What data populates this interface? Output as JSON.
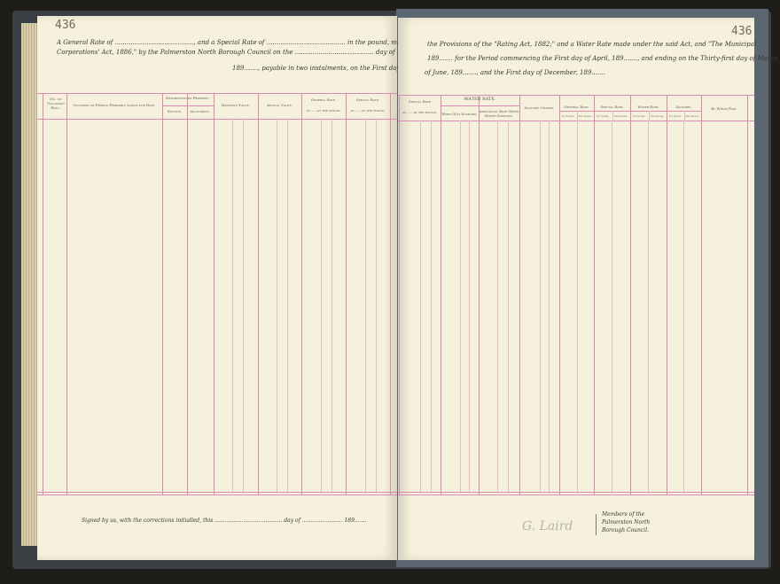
{
  "page_number_left": "436",
  "page_number_right": "436",
  "preamble_left": [
    "A General Rate of ........................................, and a Special Rate of ........................................ in the pound, made under",
    "Corporations' Act, 1886,\" by the Palmerston North Borough Council on the ........................................ day of ........................",
    "189......., payable in two instalments, on the First day"
  ],
  "preamble_right": [
    "the Provisions of the \"Rating Act, 1882;\" and a Water Rate made under the said Act, and \"The Municipal",
    "189....... for the Period commencing the First day of April, 189......., and ending on the Thirty-first day of March,",
    "of June, 189......., and the First day of December, 189......."
  ],
  "headers_left": {
    "no_on_roll": "No. on Valuation Roll.",
    "occupier": "Occupier or Person Primarily Liable for Rate.",
    "description": "Description of Property.",
    "section": "Section.",
    "allotment": "Allotment.",
    "rateable_value": "Rateable Value.",
    "annual_value": "Annual Value.",
    "general_rate": "General Rate.",
    "general_rate_sub": "at.......in the pound.",
    "special_rate": "Special Rate.",
    "special_rate_sub": "at.......in the pound."
  },
  "headers_right": {
    "special_rate": "Special Rate",
    "special_rate_sub": "at.......in the pound.",
    "water_rate": "WATER RATE.",
    "not_supplied": "When Not Supplied.",
    "additional": "Additional Rate When Water Supplied.",
    "sanitary": "Sanitary Charge.",
    "general_rate": "General Rate.",
    "special_rate2": "Special Rate.",
    "water_rate2": "Water Rate.",
    "sanitary2": "Sanitary.",
    "first_instal": "1st Instal.",
    "second_instal": "2nd Instal.",
    "by_whom_paid": "By Whom Paid."
  },
  "footer_left": "Signed by us, with the corrections initialled, this ........................................ day of ........................ 189.......",
  "footer_right": [
    "Members of the",
    "Palmerston North",
    "Borough Council."
  ],
  "signature": "G. Laird"
}
